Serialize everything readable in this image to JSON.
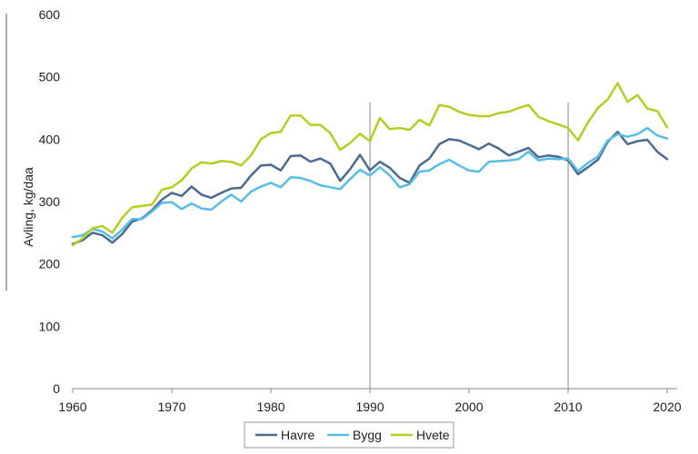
{
  "chart_data": {
    "type": "line",
    "xlabel": "",
    "ylabel": "Avling, kg/daa",
    "xlim": [
      1960,
      2021
    ],
    "ylim": [
      0,
      600
    ],
    "x_ticks": [
      1960,
      1970,
      1980,
      1990,
      2000,
      2010,
      2020
    ],
    "y_ticks": [
      0,
      100,
      200,
      300,
      400,
      500,
      600
    ],
    "vertical_markers": [
      1990,
      2010
    ],
    "grid": false,
    "legend_position": "bottom",
    "x": [
      1960,
      1961,
      1962,
      1963,
      1964,
      1965,
      1966,
      1967,
      1968,
      1969,
      1970,
      1971,
      1972,
      1973,
      1974,
      1975,
      1976,
      1977,
      1978,
      1979,
      1980,
      1981,
      1982,
      1983,
      1984,
      1985,
      1986,
      1987,
      1988,
      1989,
      1990,
      1991,
      1992,
      1993,
      1994,
      1995,
      1996,
      1997,
      1998,
      1999,
      2000,
      2001,
      2002,
      2003,
      2004,
      2005,
      2006,
      2007,
      2008,
      2009,
      2010,
      2011,
      2012,
      2013,
      2014,
      2015,
      2016,
      2017,
      2018,
      2019,
      2020
    ],
    "series": [
      {
        "name": "Havre",
        "color": "#4a6b8f",
        "values": [
          232,
          238,
          250,
          246,
          234,
          248,
          268,
          273,
          286,
          303,
          314,
          309,
          324,
          311,
          306,
          314,
          321,
          322,
          342,
          358,
          359,
          350,
          373,
          374,
          364,
          369,
          361,
          333,
          352,
          375,
          350,
          364,
          354,
          338,
          330,
          358,
          369,
          392,
          400,
          398,
          391,
          384,
          393,
          385,
          374,
          380,
          386,
          371,
          374,
          372,
          366,
          344,
          355,
          367,
          396,
          412,
          392,
          397,
          399,
          380,
          368
        ]
      },
      {
        "name": "Bygg",
        "color": "#58bde6",
        "values": [
          243,
          246,
          256,
          252,
          241,
          255,
          272,
          272,
          284,
          298,
          299,
          288,
          297,
          289,
          287,
          300,
          311,
          300,
          316,
          324,
          330,
          323,
          339,
          338,
          333,
          326,
          323,
          320,
          336,
          351,
          342,
          355,
          342,
          323,
          328,
          348,
          350,
          360,
          367,
          358,
          350,
          348,
          364,
          365,
          366,
          368,
          380,
          366,
          369,
          368,
          369,
          349,
          362,
          372,
          398,
          408,
          404,
          408,
          418,
          406,
          401
        ]
      },
      {
        "name": "Hvete",
        "color": "#b8cc22",
        "values": [
          230,
          241,
          257,
          261,
          250,
          274,
          291,
          293,
          295,
          319,
          323,
          334,
          353,
          363,
          361,
          365,
          364,
          358,
          374,
          400,
          410,
          412,
          438,
          438,
          423,
          423,
          410,
          383,
          394,
          409,
          397,
          434,
          416,
          418,
          415,
          431,
          422,
          455,
          452,
          444,
          439,
          437,
          437,
          442,
          444,
          450,
          455,
          436,
          429,
          424,
          418,
          398,
          427,
          450,
          464,
          490,
          460,
          471,
          449,
          445,
          419
        ]
      }
    ]
  }
}
